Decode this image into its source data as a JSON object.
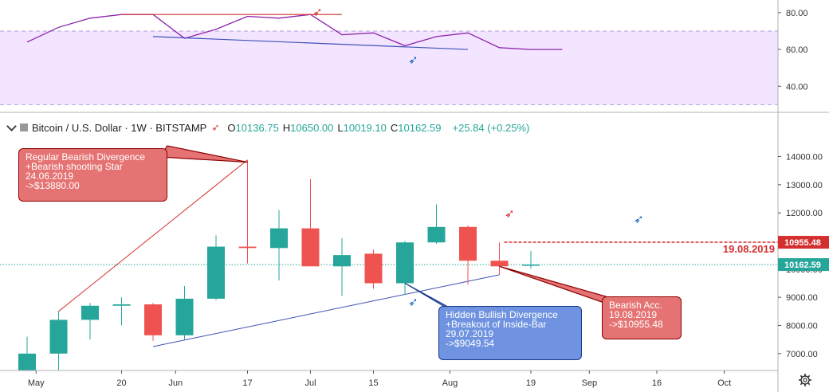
{
  "header": {
    "title": "Bitcoin / U.S. Dollar · 1W · BITSTAMP",
    "open_label": "O",
    "open": "10136.75",
    "high_label": "H",
    "high": "10650.00",
    "low_label": "L",
    "low": "10019.10",
    "close_label": "C",
    "close": "10162.59",
    "change": "+25.84 (+0.25%)"
  },
  "chart_data": [
    {
      "type": "line",
      "panel": "oscillator",
      "ylim": [
        28,
        86
      ],
      "yticks": [
        "80.00",
        "60.00",
        "40.00"
      ],
      "band": [
        30,
        70
      ],
      "x": [
        "2019-04-29",
        "2019-05-06",
        "2019-05-13",
        "2019-05-20",
        "2019-05-27",
        "2019-06-03",
        "2019-06-10",
        "2019-06-17",
        "2019-06-24",
        "2019-07-01",
        "2019-07-08",
        "2019-07-15",
        "2019-07-22",
        "2019-07-29",
        "2019-08-05",
        "2019-08-12",
        "2019-08-19",
        "2019-08-26"
      ],
      "series": [
        {
          "values": [
            64,
            72,
            77,
            79,
            79,
            66,
            71,
            78,
            77,
            79,
            68,
            69,
            62,
            67,
            69,
            61,
            60,
            60
          ]
        }
      ],
      "divergence_lines": [
        {
          "from": [
            "2019-05-20",
            79
          ],
          "to": [
            "2019-07-08",
            79
          ],
          "color": "#d32f2f"
        },
        {
          "from": [
            "2019-05-27",
            67
          ],
          "to": [
            "2019-08-05",
            60
          ],
          "color": "#3f51b5"
        }
      ]
    },
    {
      "type": "candlestick",
      "panel": "price",
      "ylim": [
        6400,
        14750
      ],
      "yticks": [
        "14000.00",
        "13000.00",
        "12000.00",
        "11000.00",
        "10000.00",
        "9000.00",
        "8000.00",
        "7000.00"
      ],
      "xticks": [
        "May",
        "20",
        "Jun",
        "17",
        "Jul",
        "15",
        "Aug",
        "19",
        "Sep",
        "16",
        "Oct"
      ],
      "candles": [
        {
          "date": "2019-04-29",
          "o": 6400,
          "h": 7600,
          "l": 6400,
          "c": 7000
        },
        {
          "date": "2019-05-06",
          "o": 7000,
          "h": 8500,
          "l": 6400,
          "c": 8200
        },
        {
          "date": "2019-05-13",
          "o": 8200,
          "h": 8800,
          "l": 7500,
          "c": 8700
        },
        {
          "date": "2019-05-20",
          "o": 8700,
          "h": 9000,
          "l": 8000,
          "c": 8750
        },
        {
          "date": "2019-05-27",
          "o": 8750,
          "h": 8800,
          "l": 7450,
          "c": 7650
        },
        {
          "date": "2019-06-03",
          "o": 7650,
          "h": 9400,
          "l": 7500,
          "c": 8950
        },
        {
          "date": "2019-06-10",
          "o": 8950,
          "h": 11200,
          "l": 8900,
          "c": 10800
        },
        {
          "date": "2019-06-17",
          "o": 10800,
          "h": 13880,
          "l": 10200,
          "c": 10750
        },
        {
          "date": "2019-06-24",
          "o": 10750,
          "h": 12100,
          "l": 9600,
          "c": 11450
        },
        {
          "date": "2019-07-01",
          "o": 11450,
          "h": 13200,
          "l": 10100,
          "c": 10100
        },
        {
          "date": "2019-07-08",
          "o": 10100,
          "h": 11100,
          "l": 9050,
          "c": 10500
        },
        {
          "date": "2019-07-15",
          "o": 10550,
          "h": 10700,
          "l": 9300,
          "c": 9500
        },
        {
          "date": "2019-07-22",
          "o": 9500,
          "h": 11000,
          "l": 9100,
          "c": 10950
        },
        {
          "date": "2019-07-29",
          "o": 10950,
          "h": 12300,
          "l": 10900,
          "c": 11500
        },
        {
          "date": "2019-08-05",
          "o": 11500,
          "h": 11550,
          "l": 9450,
          "c": 10300
        },
        {
          "date": "2019-08-12",
          "o": 10300,
          "h": 10950,
          "l": 9800,
          "c": 10100
        },
        {
          "date": "2019-08-19",
          "o": 10136.75,
          "h": 10650,
          "l": 10019.1,
          "c": 10162.59
        }
      ],
      "level_lines": [
        {
          "value": 10955.48,
          "label": "19.08.2019",
          "color": "#d32f2f",
          "dashed": true
        },
        {
          "value": 10162.59,
          "color": "#26a69a",
          "dotted": true
        }
      ],
      "price_labels": [
        {
          "text": "10955.48",
          "value": 10955.48,
          "color": "#d32f2f"
        },
        {
          "text": "10162.59",
          "value": 10162.59,
          "color": "#26a69a"
        }
      ],
      "trend_lines": [
        {
          "from": [
            "2019-05-06",
            8500
          ],
          "to": [
            "2019-06-17",
            13880
          ],
          "color": "#d32f2f"
        },
        {
          "from": [
            "2019-05-27",
            7250
          ],
          "to": [
            "2019-08-12",
            9800
          ],
          "color": "#3f51b5"
        }
      ],
      "annotations": [
        {
          "text": "Regular Bearish Divergence\n+Bearish shooting Star\n24.06.2019\n->$13880.00",
          "color": "red",
          "pointer": [
            "2019-06-17",
            13800
          ]
        },
        {
          "text": "Hidden Bullish Divergence\n+Breakout of Inside-Bar\n29.07.2019\n->$9049.54",
          "color": "blue",
          "pointer": [
            "2019-07-22",
            9500
          ]
        },
        {
          "text": "Bearish Acc.\n19.08.2019\n->$10955.48",
          "color": "red",
          "pointer": [
            "2019-08-12",
            10100
          ]
        }
      ]
    }
  ]
}
